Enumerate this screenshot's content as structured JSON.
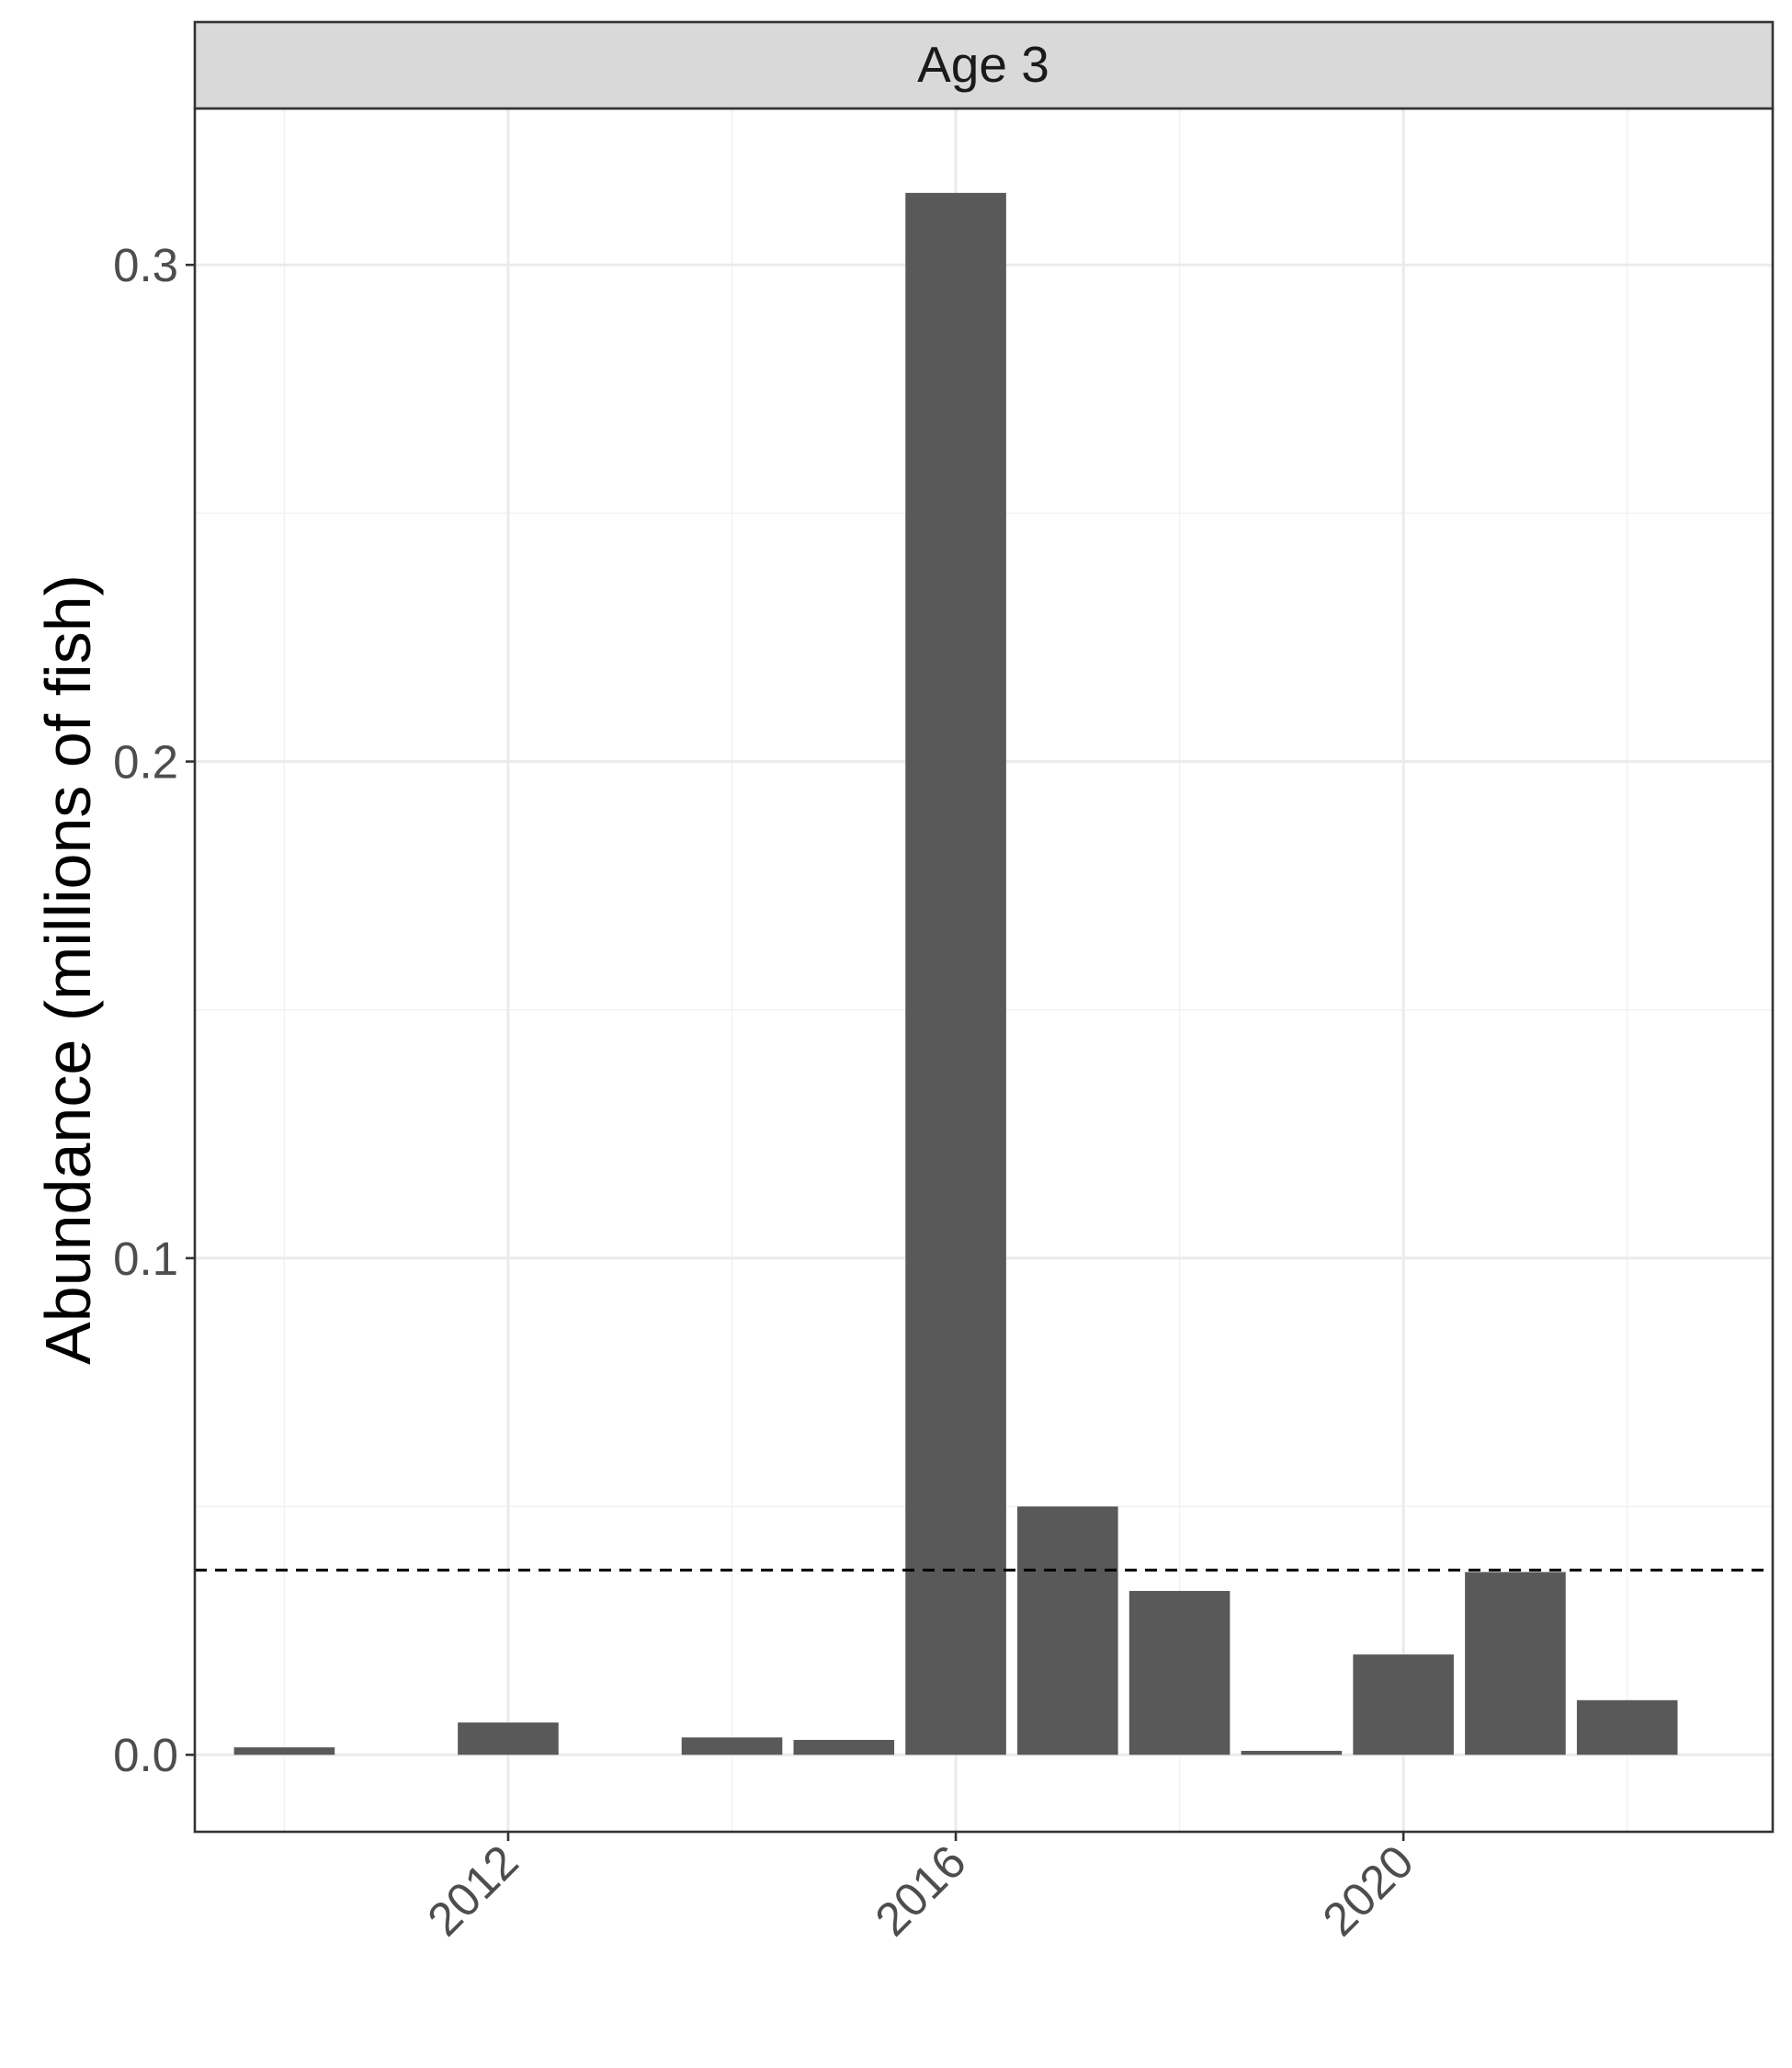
{
  "chart_data": {
    "type": "bar",
    "panel_title": "Age 3",
    "xlabel": "",
    "ylabel": "Abundance (millions of fish)",
    "x": [
      2010,
      2012,
      2014,
      2015,
      2016,
      2017,
      2018,
      2019,
      2020,
      2021,
      2022
    ],
    "values": [
      0.0015,
      0.0065,
      0.0035,
      0.003,
      0.3145,
      0.05,
      0.033,
      0.0008,
      0.0202,
      0.0368,
      0.011
    ],
    "bar_color": "#595959",
    "reference_line": {
      "y": 0.0372,
      "style": "dashed",
      "color": "#000000"
    },
    "xlim": [
      2009.2,
      2023.3
    ],
    "ylim": [
      -0.0155,
      0.3315
    ],
    "x_ticks": [
      2012,
      2016,
      2020
    ],
    "x_tick_labels": [
      "2012",
      "2016",
      "2020"
    ],
    "y_ticks": [
      0.0,
      0.1,
      0.2,
      0.3
    ],
    "y_tick_labels": [
      "0.0",
      "0.1",
      "0.2",
      "0.3"
    ],
    "x_minor_ticks": [
      2010,
      2014,
      2018,
      2022
    ],
    "y_minor_ticks": [
      0.05,
      0.15,
      0.25
    ],
    "grid": true,
    "legend": "none",
    "strip_fill": "#d9d9d9"
  }
}
